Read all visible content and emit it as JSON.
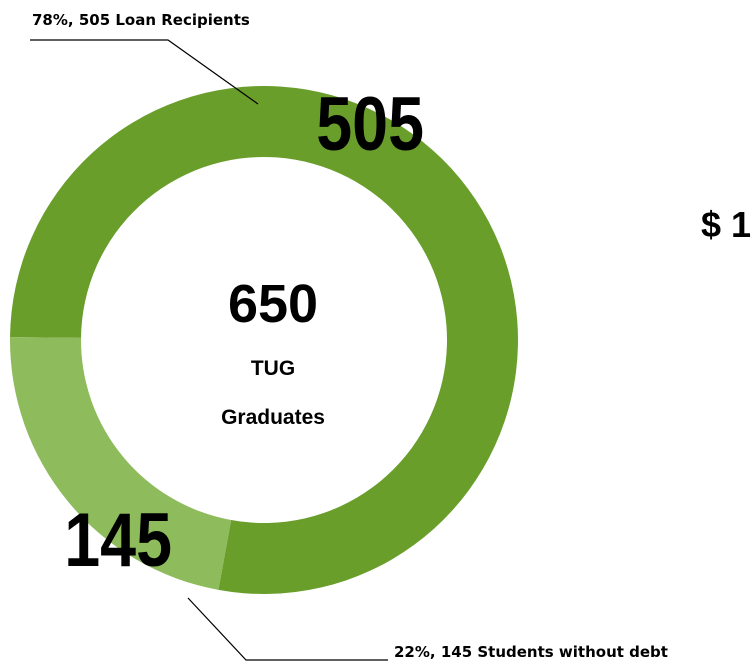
{
  "chart_data": {
    "type": "pie",
    "title": "",
    "categories": [
      "Loan Recipients",
      "Students without debt"
    ],
    "values": [
      505,
      145
    ],
    "percents": [
      "78%",
      "22%"
    ],
    "colors": [
      "#6a9e2b",
      "#8ebb5c"
    ],
    "callouts": [
      "78%, 505 Loan Recipients",
      "22%, 145 Students without debt"
    ],
    "center": {
      "value": "650",
      "line1": "TUG",
      "line2": "Graduates"
    }
  },
  "side_text": "$ 1"
}
